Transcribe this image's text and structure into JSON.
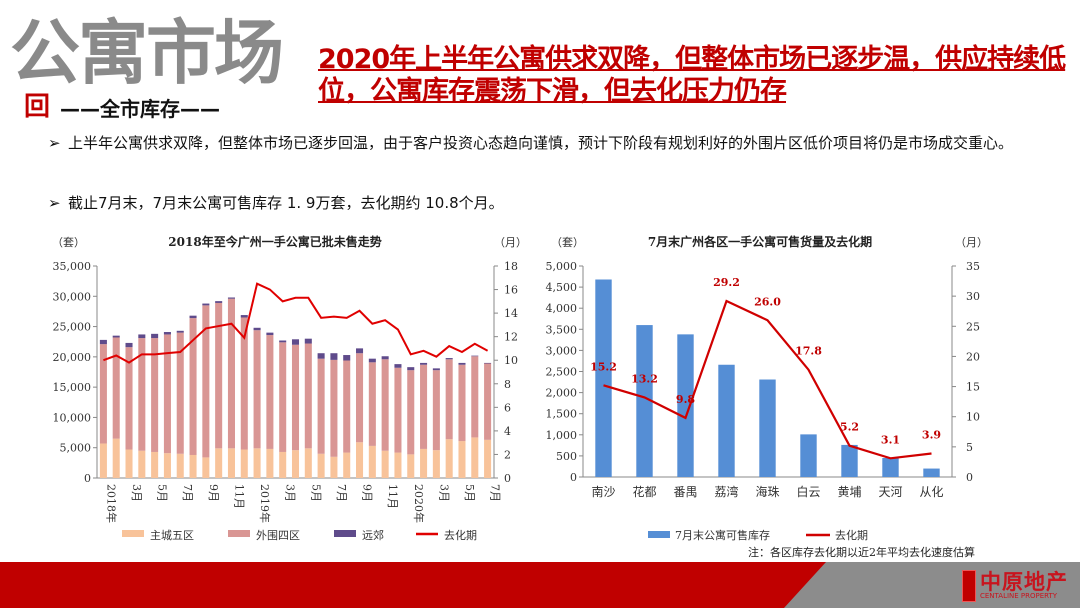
{
  "header": {
    "big_title": "公寓市场",
    "big_title_tail": "回",
    "subtitle": "——全市库存——",
    "headline": "2020年上半年公寓供求双降，但整体市场已逐步温，供应持续低位，公寓库存震荡下滑，但去化压力仍存"
  },
  "bullets": [
    {
      "icon": "arrow-bullet-icon",
      "symbol": "➢",
      "text": "上半年公寓供求双降，但整体市场已逐步回温，由于客户投资心态趋向谨慎，预计下阶段有规划利好的外围片区低价项目将仍是市场成交重心。"
    },
    {
      "icon": "arrow-bullet-icon",
      "symbol": "➢",
      "text": "截止7月末，7月末公寓可售库存 1. 9万套，去化期约 10.8个月。"
    }
  ],
  "footer": {
    "logo_cn": "中原地产",
    "logo_en": "CENTALINE PROPERTY",
    "seal_text": "中原",
    "colors": {
      "red": "#C00000",
      "gray": "#8C8C8C"
    }
  },
  "chart_data": [
    {
      "type": "bar",
      "stacked": true,
      "title": "2018年至今广州一手公寓已批未售走势",
      "ylabel": "（套）",
      "y2label": "（月）",
      "ylim": [
        0,
        35000
      ],
      "yticks": [
        "0",
        "5,000",
        "10,000",
        "15,000",
        "20,000",
        "25,000",
        "30,000",
        "35,000"
      ],
      "y2lim": [
        0,
        18
      ],
      "y2ticks": [
        "0",
        "2",
        "4",
        "6",
        "8",
        "10",
        "12",
        "14",
        "16",
        "18"
      ],
      "categories": [
        "2018年",
        "",
        "3月",
        "",
        "5月",
        "",
        "7月",
        "",
        "9月",
        "",
        "11月",
        "",
        "2019年",
        "",
        "3月",
        "",
        "5月",
        "",
        "7月",
        "",
        "9月",
        "",
        "11月",
        "",
        "2020年",
        "",
        "3月",
        "",
        "5月",
        "",
        "7月"
      ],
      "series": [
        {
          "name": "主城五区",
          "type": "bar",
          "color": "#F8C39A",
          "values": [
            5700,
            6500,
            4700,
            4500,
            4300,
            4100,
            4000,
            3800,
            3400,
            4900,
            4900,
            4700,
            4900,
            4800,
            4300,
            4600,
            4900,
            4000,
            3500,
            4200,
            5900,
            5300,
            4500,
            4200,
            3900,
            4800,
            4600,
            6400,
            6100,
            6700,
            6300
          ]
        },
        {
          "name": "外围四区",
          "type": "bar",
          "color": "#D99694",
          "values": [
            16400,
            16700,
            16900,
            18600,
            18800,
            19600,
            20000,
            22600,
            25100,
            24000,
            24700,
            21800,
            19500,
            18800,
            18100,
            17400,
            17300,
            15700,
            16000,
            15200,
            14700,
            13800,
            15100,
            14000,
            13900,
            13900,
            13200,
            13200,
            12600,
            13400,
            12600
          ]
        },
        {
          "name": "远郊",
          "type": "bar",
          "color": "#5F4B8B",
          "values": [
            700,
            300,
            700,
            600,
            700,
            400,
            300,
            400,
            300,
            300,
            200,
            400,
            400,
            400,
            300,
            900,
            800,
            900,
            1100,
            900,
            800,
            600,
            500,
            600,
            500,
            300,
            300,
            200,
            300,
            100,
            100
          ]
        },
        {
          "name": "去化期",
          "type": "line",
          "axis": "right",
          "color": "#E00000",
          "values": [
            10.0,
            10.4,
            9.8,
            10.5,
            10.5,
            10.6,
            10.7,
            11.7,
            12.7,
            12.9,
            13.1,
            11.9,
            16.5,
            16.0,
            15.0,
            15.3,
            15.3,
            13.6,
            13.7,
            13.6,
            14.2,
            13.1,
            13.4,
            12.6,
            10.5,
            10.8,
            10.3,
            11.2,
            10.7,
            11.4,
            10.8
          ]
        }
      ],
      "legend": "bottom",
      "grid": false
    },
    {
      "type": "bar",
      "title": "7月末广州各区一手公寓可售货量及去化期",
      "ylabel": "（套）",
      "y2label": "（月）",
      "ylim": [
        0,
        5000
      ],
      "yticks": [
        "0",
        "500",
        "1,000",
        "1,500",
        "2,000",
        "2,500",
        "3,000",
        "3,500",
        "4,000",
        "4,500",
        "5,000"
      ],
      "y2lim": [
        0,
        35
      ],
      "y2ticks": [
        "0",
        "5",
        "10",
        "15",
        "20",
        "25",
        "30",
        "35"
      ],
      "categories": [
        "南沙",
        "花都",
        "番禺",
        "荔湾",
        "海珠",
        "白云",
        "黄埔",
        "天河",
        "从化"
      ],
      "series": [
        {
          "name": "7月末公寓可售库存",
          "type": "bar",
          "color": "#558ED5",
          "values": [
            4680,
            3600,
            3380,
            2660,
            2310,
            1010,
            760,
            450,
            200
          ]
        },
        {
          "name": "去化期",
          "type": "line",
          "axis": "right",
          "color": "#D00000",
          "values": [
            15.2,
            13.2,
            9.8,
            29.2,
            26.0,
            17.8,
            5.2,
            3.1,
            3.9
          ],
          "labels": [
            "15.2",
            "13.2",
            "9.8",
            "29.2",
            "26.0",
            "17.8",
            "5.2",
            "3.1",
            "3.9"
          ]
        }
      ],
      "legend": "bottom",
      "grid": false,
      "note": "注：各区库存去化期以近2年平均去化速度估算"
    }
  ]
}
